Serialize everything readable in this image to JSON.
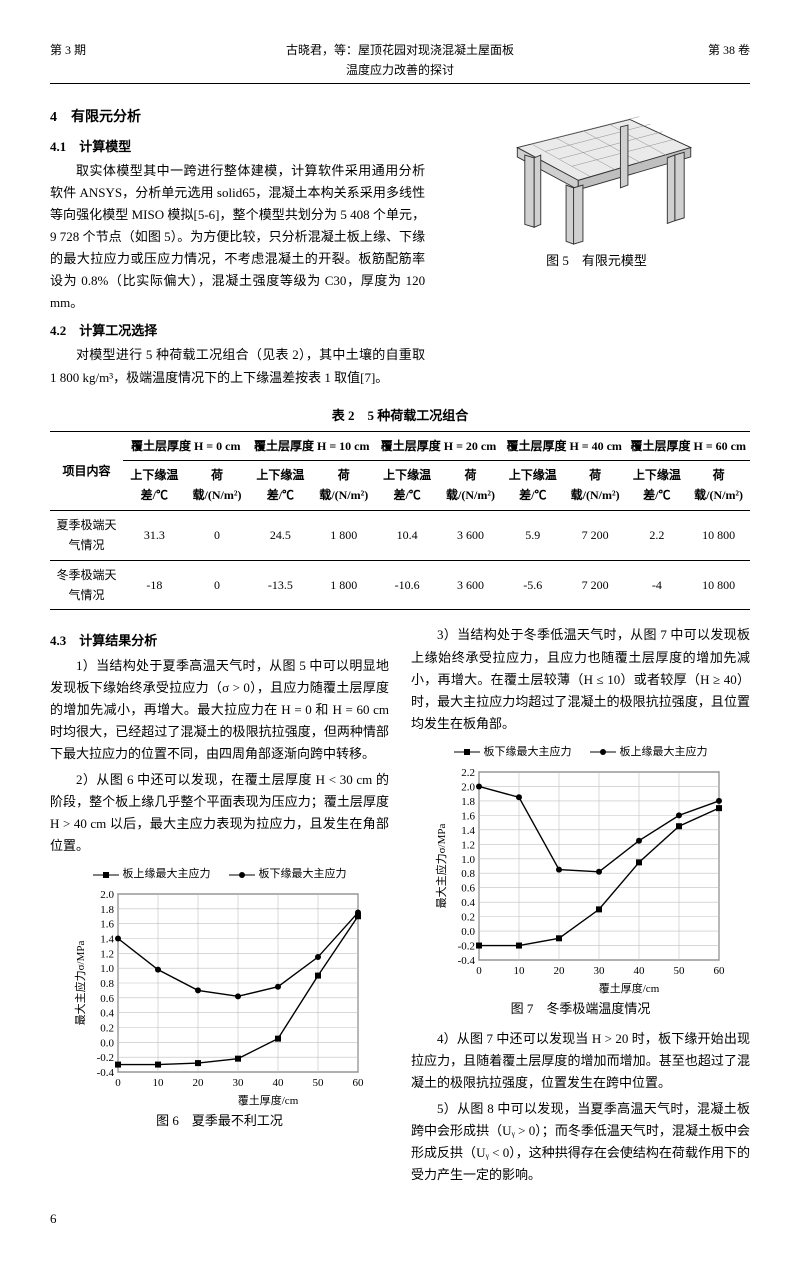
{
  "header": {
    "left": "第 3 期",
    "center": "古晓君，等：屋顶花园对现浇混凝土屋面板温度应力改善的探讨",
    "right": "第 38 卷"
  },
  "sec4": {
    "title": "4　有限元分析",
    "s41_title": "4.1　计算模型",
    "s41_body": "取实体模型其中一跨进行整体建模，计算软件采用通用分析软件 ANSYS，分析单元选用 solid65，混凝土本构关系采用多线性等向强化模型 MISO 模拟[5-6]，整个模型共划分为 5 408 个单元，9 728 个节点（如图 5）。为方便比较，只分析混凝土板上缘、下缘的最大拉应力或压应力情况，不考虑混凝土的开裂。板筋配筋率设为 0.8%（比实际偏大），混凝土强度等级为 C30，厚度为 120 mm。",
    "s42_title": "4.2　计算工况选择",
    "s42_body": "对模型进行 5 种荷载工况组合（见表 2），其中土壤的自重取 1 800 kg/m³，极端温度情况下的上下缘温差按表 1 取值[7]。",
    "fig5_caption": "图 5　有限元模型"
  },
  "table2": {
    "title": "表 2　5 种荷载工况组合",
    "row_header": "项目内容",
    "group_labels": [
      "覆土层厚度 H = 0 cm",
      "覆土层厚度 H = 10 cm",
      "覆土层厚度 H = 20 cm",
      "覆土层厚度 H = 40 cm",
      "覆土层厚度 H = 60 cm"
    ],
    "sub_a": "上下缘温差/℃",
    "sub_b": "荷载/(N/m²)",
    "rows": [
      {
        "label": "夏季极端天气情况",
        "cells": [
          "31.3",
          "0",
          "24.5",
          "1 800",
          "10.4",
          "3 600",
          "5.9",
          "7 200",
          "2.2",
          "10 800"
        ]
      },
      {
        "label": "冬季极端天气情况",
        "cells": [
          "-18",
          "0",
          "-13.5",
          "1 800",
          "-10.6",
          "3 600",
          "-5.6",
          "7 200",
          "-4",
          "10 800"
        ]
      }
    ]
  },
  "sec43": {
    "title": "4.3　计算结果分析",
    "p1": "1）当结构处于夏季高温天气时，从图 5 中可以明显地发现板下缘始终承受拉应力（σ > 0），且应力随覆土层厚度的增加先减小，再增大。最大拉应力在 H = 0 和 H = 60 cm 时均很大，已经超过了混凝土的极限抗拉强度，但两种情部下最大拉应力的位置不同，由四周角部逐渐向跨中转移。",
    "p2": "2）从图 6 中还可以发现，在覆土层厚度 H < 30 cm 的阶段，整个板上缘几乎整个平面表现为压应力；覆土层厚度 H > 40 cm 以后，最大主应力表现为拉应力，且发生在角部位置。",
    "p3": "3）当结构处于冬季低温天气时，从图 7 中可以发现板上缘始终承受拉应力，且应力也随覆土层厚度的增加先减小，再增大。在覆土层较薄（H ≤ 10）或者较厚（H ≥ 40）时，最大主拉应力均超过了混凝土的极限抗拉强度，且位置均发生在板角部。",
    "p4": "4）从图 7 中还可以发现当 H > 20 时，板下缘开始出现拉应力，且随着覆土层厚度的增加而增加。甚至也超过了混凝土的极限抗拉强度，位置发生在跨中位置。",
    "p5": "5）从图 8 中可以发现，当夏季高温天气时，混凝土板跨中会形成拱（Uᵧ > 0）；而冬季低温天气时，混凝土板中会形成反拱（Uᵧ < 0），这种拱得存在会使结构在荷载作用下的受力产生一定的影响。"
  },
  "chart6": {
    "type": "line",
    "caption": "图 6　夏季最不利工况",
    "x_label": "覆土厚度/cm",
    "y_label": "最大主应力σ/MPa",
    "x_vals": [
      0,
      10,
      20,
      30,
      40,
      50,
      60
    ],
    "ylim": [
      -0.4,
      2.0
    ],
    "yticks": [
      -0.4,
      -0.2,
      0.0,
      0.2,
      0.4,
      0.6,
      0.8,
      1.0,
      1.2,
      1.4,
      1.6,
      1.8,
      2.0
    ],
    "legend": [
      "板上缘最大主应力",
      "板下缘最大主应力"
    ],
    "series": [
      {
        "name": "板上缘最大主应力",
        "marker": "square",
        "data": [
          -0.3,
          -0.3,
          -0.28,
          -0.22,
          0.05,
          0.9,
          1.7
        ]
      },
      {
        "name": "板下缘最大主应力",
        "marker": "circle",
        "data": [
          1.4,
          0.98,
          0.7,
          0.62,
          0.75,
          1.15,
          1.75
        ]
      }
    ],
    "grid_color": "#bfbfbf",
    "line_color": "#000000",
    "background": "#ffffff",
    "label_fontsize": 11
  },
  "chart7": {
    "type": "line",
    "caption": "图 7　冬季极端温度情况",
    "x_label": "覆土厚度/cm",
    "y_label": "最大主应力σ/MPa",
    "x_vals": [
      0,
      10,
      20,
      30,
      40,
      50,
      60
    ],
    "ylim": [
      -0.4,
      2.2
    ],
    "yticks": [
      -0.4,
      -0.2,
      0.0,
      0.2,
      0.4,
      0.6,
      0.8,
      1.0,
      1.2,
      1.4,
      1.6,
      1.8,
      2.0,
      2.2
    ],
    "legend": [
      "板下缘最大主应力",
      "板上缘最大主应力"
    ],
    "series": [
      {
        "name": "板下缘最大主应力",
        "marker": "square",
        "data": [
          -0.2,
          -0.2,
          -0.1,
          0.3,
          0.95,
          1.45,
          1.7
        ]
      },
      {
        "name": "板上缘最大主应力",
        "marker": "circle",
        "data": [
          2.0,
          1.85,
          0.85,
          0.82,
          1.25,
          1.6,
          1.8
        ]
      }
    ],
    "grid_color": "#bfbfbf",
    "line_color": "#000000",
    "background": "#ffffff",
    "label_fontsize": 11
  },
  "pagenum": "6"
}
